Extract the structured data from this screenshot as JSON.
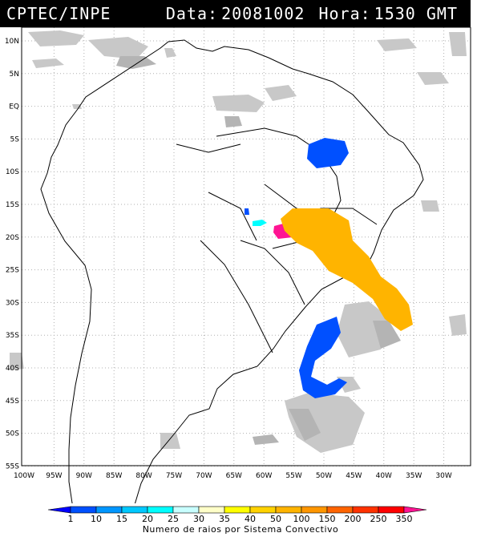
{
  "header": {
    "source": "CPTEC/INPE",
    "date_label": "Data:",
    "date_value": "20081002",
    "time_label": "Hora:",
    "time_value": "1530 GMT"
  },
  "map": {
    "lat_labels": [
      "10N",
      "5N",
      "EQ",
      "5S",
      "10S",
      "15S",
      "20S",
      "25S",
      "30S",
      "35S",
      "40S",
      "45S",
      "50S",
      "55S"
    ],
    "lon_labels": [
      "100W",
      "95W",
      "90W",
      "85W",
      "80W",
      "75W",
      "70W",
      "65W",
      "60W",
      "55W",
      "50W",
      "45W",
      "40W",
      "35W",
      "30W"
    ],
    "cloud_color": "#c8c8c8",
    "gridline_color": "#b0b0b0"
  },
  "legend": {
    "title": "Numero de raios por Sistema Convectivo",
    "tick_labels": [
      "1",
      "10",
      "15",
      "20",
      "25",
      "30",
      "35",
      "40",
      "50",
      "100",
      "150",
      "200",
      "250",
      "350"
    ],
    "colors": [
      "#0000ff",
      "#0050ff",
      "#0096ff",
      "#00c8ff",
      "#00ffff",
      "#c8ffff",
      "#ffffc8",
      "#ffff00",
      "#ffd200",
      "#ffb400",
      "#ff9600",
      "#ff6400",
      "#ff3200",
      "#ff0000",
      "#ff1493"
    ]
  },
  "systems": [
    {
      "name": "northeast-brazil",
      "color": "#0050ff"
    },
    {
      "name": "bolivia-small",
      "color": "#0050ff"
    },
    {
      "name": "paraguay-cyan",
      "color": "#00ffff"
    },
    {
      "name": "mato-grosso-sul",
      "color": "#ff1493"
    },
    {
      "name": "southeast-brazil",
      "color": "#ffb400"
    },
    {
      "name": "south-atlantic",
      "color": "#0050ff"
    }
  ]
}
